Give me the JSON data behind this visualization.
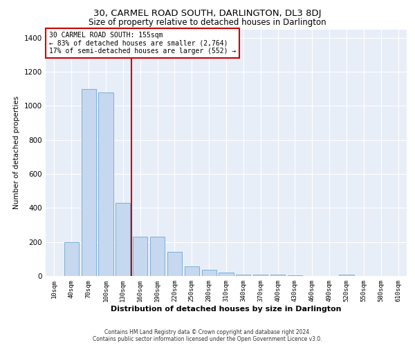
{
  "title": "30, CARMEL ROAD SOUTH, DARLINGTON, DL3 8DJ",
  "subtitle": "Size of property relative to detached houses in Darlington",
  "xlabel": "Distribution of detached houses by size in Darlington",
  "ylabel": "Number of detached properties",
  "categories": [
    "10sqm",
    "40sqm",
    "70sqm",
    "100sqm",
    "130sqm",
    "160sqm",
    "190sqm",
    "220sqm",
    "250sqm",
    "280sqm",
    "310sqm",
    "340sqm",
    "370sqm",
    "400sqm",
    "430sqm",
    "460sqm",
    "490sqm",
    "520sqm",
    "550sqm",
    "580sqm",
    "610sqm"
  ],
  "values": [
    0,
    200,
    1100,
    1080,
    430,
    230,
    230,
    140,
    55,
    35,
    20,
    10,
    10,
    10,
    5,
    0,
    0,
    10,
    0,
    0,
    0
  ],
  "bar_color": "#c5d8f0",
  "bar_edge_color": "#7bafd4",
  "highlight_line_color": "#cc0000",
  "annotation_text": "30 CARMEL ROAD SOUTH: 155sqm\n← 83% of detached houses are smaller (2,764)\n17% of semi-detached houses are larger (552) →",
  "annotation_box_color": "#ffffff",
  "annotation_box_edge_color": "#cc0000",
  "ylim": [
    0,
    1450
  ],
  "yticks": [
    0,
    200,
    400,
    600,
    800,
    1000,
    1200,
    1400
  ],
  "background_color": "#e8eef8",
  "grid_color": "#ffffff",
  "footer_line1": "Contains HM Land Registry data © Crown copyright and database right 2024.",
  "footer_line2": "Contains public sector information licensed under the Open Government Licence v3.0."
}
